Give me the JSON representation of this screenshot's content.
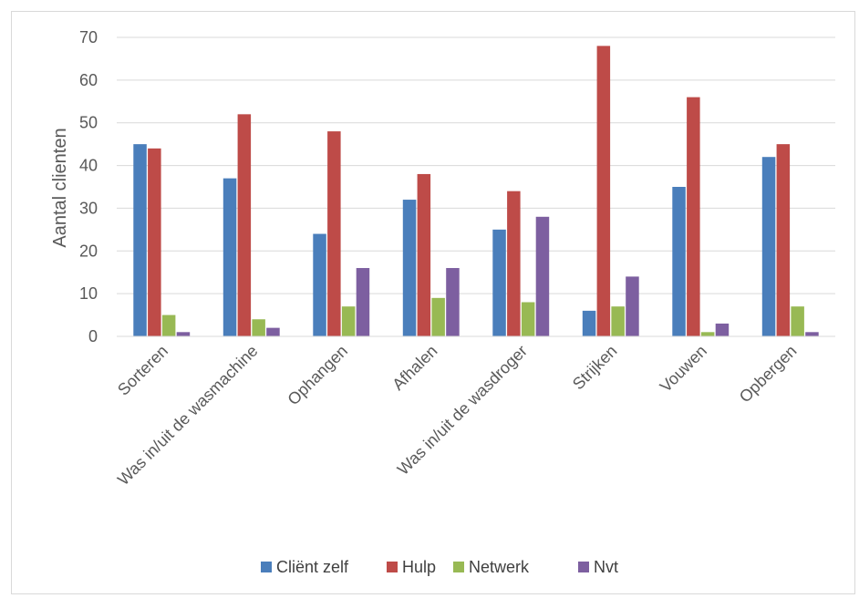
{
  "chart_data": {
    "type": "bar",
    "title": "",
    "xlabel": "",
    "ylabel": "Aantal clienten",
    "ylim": [
      0,
      70
    ],
    "yticks": [
      0,
      10,
      20,
      30,
      40,
      50,
      60,
      70
    ],
    "grid": true,
    "legend_position": "bottom",
    "categories": [
      "Sorteren",
      "Was in/uit de wasmachine",
      "Ophangen",
      "Afhalen",
      "Was in/uit de wasdroger",
      "Strijken",
      "Vouwen",
      "Opbergen"
    ],
    "series": [
      {
        "name": "Cliënt zelf",
        "color": "#4a7ebb",
        "values": [
          45,
          37,
          24,
          32,
          25,
          6,
          35,
          42
        ]
      },
      {
        "name": "Hulp",
        "color": "#be4b48",
        "values": [
          44,
          52,
          48,
          38,
          34,
          68,
          56,
          45
        ]
      },
      {
        "name": "Netwerk",
        "color": "#98b954",
        "values": [
          5,
          4,
          7,
          9,
          8,
          7,
          1,
          7
        ]
      },
      {
        "name": "Nvt",
        "color": "#7d5fa0",
        "values": [
          1,
          2,
          16,
          16,
          28,
          14,
          3,
          1
        ]
      }
    ]
  }
}
